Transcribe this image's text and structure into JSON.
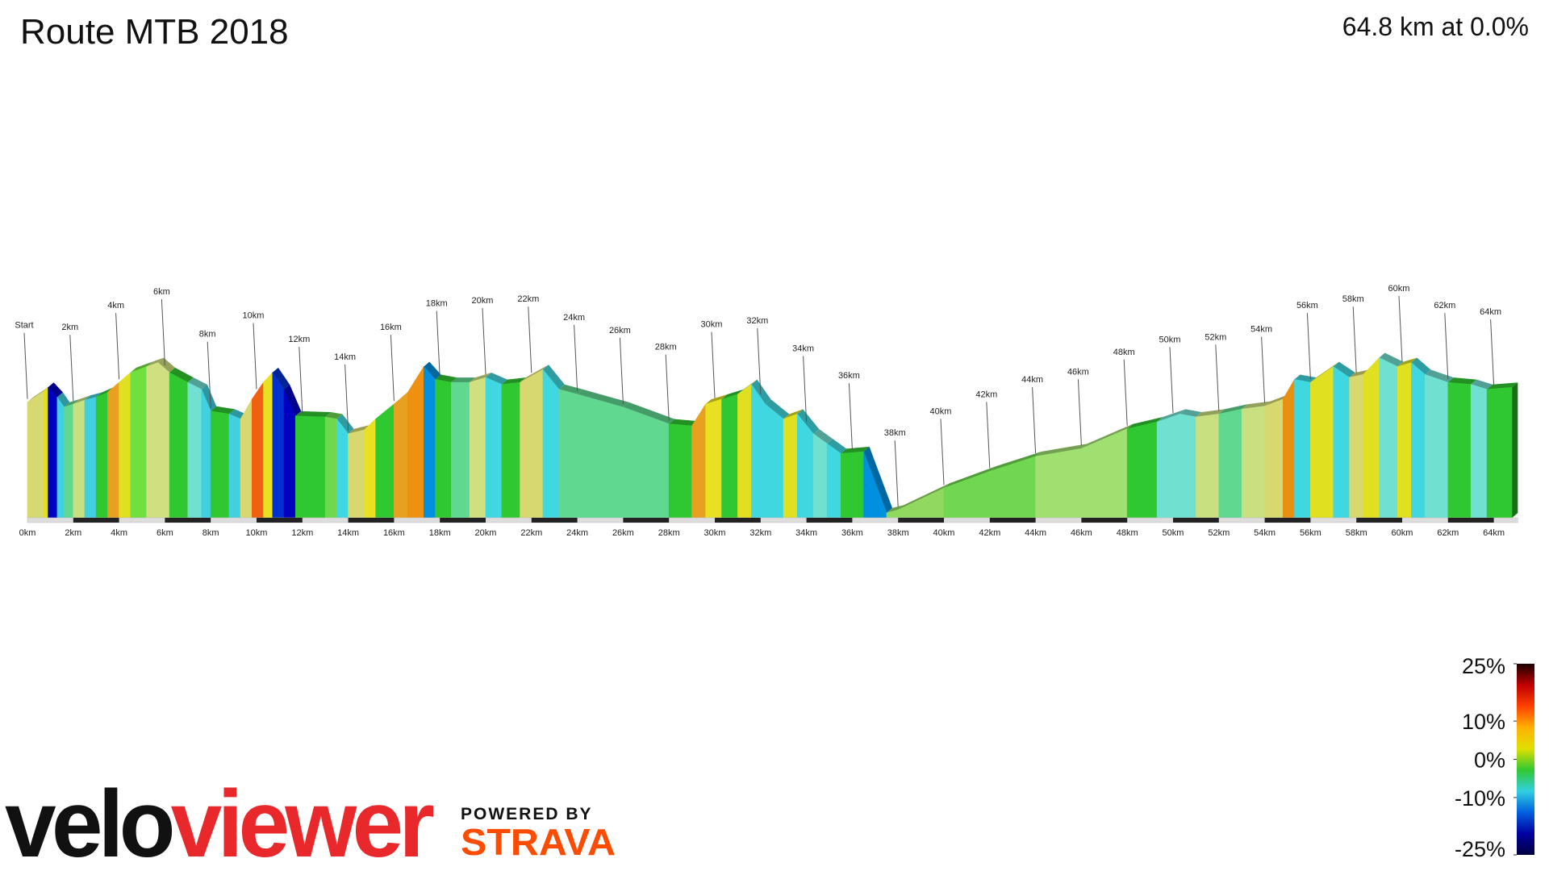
{
  "chart_data": {
    "type": "profile",
    "title": "Route MTB 2018",
    "subtitle": "64.8 km at 0.0%",
    "x": [
      0,
      0.7,
      0.9,
      1.3,
      1.6,
      2,
      2.5,
      3,
      3.5,
      4,
      4.5,
      5.2,
      5.7,
      6.2,
      7,
      7.6,
      8,
      8.8,
      9.3,
      9.8,
      10.3,
      10.7,
      11.2,
      11.7,
      13,
      13.5,
      14,
      14.7,
      15.2,
      16,
      16.6,
      17.3,
      17.8,
      18.5,
      19.3,
      20,
      20.7,
      21.5,
      22.5,
      23.2,
      24,
      26,
      28,
      29,
      29.6,
      30.3,
      31,
      31.6,
      32.2,
      33,
      33.6,
      34.3,
      34.9,
      35.5,
      36.5,
      37.5,
      38,
      40,
      42,
      44,
      46,
      48,
      49.3,
      50.3,
      51,
      52,
      53,
      54,
      54.8,
      55.3,
      56,
      57,
      57.7,
      58.3,
      59,
      59.8,
      60.4,
      61,
      62,
      63,
      63.7,
      64.8
    ],
    "values": [
      117,
      128,
      132,
      122,
      112,
      115,
      119,
      122,
      127,
      137,
      147,
      153,
      157,
      147,
      137,
      130,
      108,
      105,
      100,
      120,
      137,
      147,
      130,
      103,
      102,
      100,
      85,
      89,
      100,
      115,
      127,
      153,
      140,
      137,
      137,
      142,
      135,
      137,
      150,
      130,
      125,
      112,
      95,
      93,
      115,
      120,
      125,
      135,
      115,
      100,
      105,
      85,
      75,
      65,
      67,
      5,
      8,
      30,
      47,
      62,
      70,
      90,
      97,
      105,
      102,
      105,
      110,
      113,
      120,
      140,
      137,
      153,
      142,
      145,
      162,
      153,
      157,
      145,
      137,
      135,
      130,
      132
    ],
    "segment_colors": [
      "#d8d870",
      "#e0e020",
      "#0000c0",
      "#40d0e0",
      "#60d890",
      "#c8e080",
      "#40d0e0",
      "#30c830",
      "#e8a020",
      "#e0e020",
      "#70e040",
      "#d0e080",
      "#d0e080",
      "#30c830",
      "#70e0d0",
      "#40d0e0",
      "#30c830",
      "#40d0e0",
      "#d8d870",
      "#f06010",
      "#e8e020",
      "#0030d0",
      "#0000c0",
      "#30c830",
      "#70d850",
      "#40d8e0",
      "#d8d870",
      "#e8e020",
      "#30c830",
      "#e8a020",
      "#f09010",
      "#0090e0",
      "#30c830",
      "#60d890",
      "#d0e080",
      "#40d8e0",
      "#30c830",
      "#d8d870",
      "#40d8e0",
      "#60d890",
      "#60d890",
      "#60d890",
      "#30c830",
      "#e8a020",
      "#e8e020",
      "#30c830",
      "#e0e020",
      "#40d8e0",
      "#40d8e0",
      "#e0e020",
      "#40d8e0",
      "#70e0d0",
      "#40d8e0",
      "#30c830",
      "#0090e0",
      "#90d860",
      "#90d860",
      "#70d850",
      "#70d850",
      "#a0e070",
      "#a0e070",
      "#30c830",
      "#70e0d0",
      "#70e0d0",
      "#c8e080",
      "#60d890",
      "#c8e080",
      "#d8d870",
      "#e89010",
      "#40d8e0",
      "#e0e020",
      "#40d8e0",
      "#d8d870",
      "#e0e020",
      "#70e0d0",
      "#e0e020",
      "#40d8e0",
      "#70e0d0",
      "#30c830",
      "#70e0d0",
      "#30c830"
    ],
    "xlim": [
      0,
      64.8
    ],
    "ylim": [
      0,
      200
    ],
    "xticks": [
      {
        "value": 0,
        "label": "0km"
      },
      {
        "value": 2,
        "label": "2km"
      },
      {
        "value": 4,
        "label": "4km"
      },
      {
        "value": 6,
        "label": "6km"
      },
      {
        "value": 8,
        "label": "8km"
      },
      {
        "value": 10,
        "label": "10km"
      },
      {
        "value": 12,
        "label": "12km"
      },
      {
        "value": 14,
        "label": "14km"
      },
      {
        "value": 16,
        "label": "16km"
      },
      {
        "value": 18,
        "label": "18km"
      },
      {
        "value": 20,
        "label": "20km"
      },
      {
        "value": 22,
        "label": "22km"
      },
      {
        "value": 24,
        "label": "24km"
      },
      {
        "value": 26,
        "label": "26km"
      },
      {
        "value": 28,
        "label": "28km"
      },
      {
        "value": 30,
        "label": "30km"
      },
      {
        "value": 32,
        "label": "32km"
      },
      {
        "value": 34,
        "label": "34km"
      },
      {
        "value": 36,
        "label": "36km"
      },
      {
        "value": 38,
        "label": "38km"
      },
      {
        "value": 40,
        "label": "40km"
      },
      {
        "value": 42,
        "label": "42km"
      },
      {
        "value": 44,
        "label": "44km"
      },
      {
        "value": 46,
        "label": "46km"
      },
      {
        "value": 48,
        "label": "48km"
      },
      {
        "value": 50,
        "label": "50km"
      },
      {
        "value": 52,
        "label": "52km"
      },
      {
        "value": 54,
        "label": "54km"
      },
      {
        "value": 56,
        "label": "56km"
      },
      {
        "value": 58,
        "label": "58km"
      },
      {
        "value": 60,
        "label": "60km"
      },
      {
        "value": 62,
        "label": "62km"
      },
      {
        "value": 64,
        "label": "64km"
      }
    ],
    "marker_labels": [
      "Start",
      "2km",
      "4km",
      "6km",
      "8km",
      "10km",
      "12km",
      "14km",
      "16km",
      "18km",
      "20km",
      "22km",
      "24km",
      "26km",
      "28km",
      "30km",
      "32km",
      "34km",
      "36km",
      "38km",
      "40km",
      "42km",
      "44km",
      "46km",
      "48km",
      "50km",
      "52km",
      "54km",
      "56km",
      "58km",
      "60km",
      "62km",
      "64km"
    ],
    "colorbar": {
      "clim": [
        -25,
        25
      ],
      "ticks": [
        {
          "value": 25,
          "label": "25%"
        },
        {
          "value": 10,
          "label": "10%"
        },
        {
          "value": 0,
          "label": "0%"
        },
        {
          "value": -10,
          "label": "-10%"
        },
        {
          "value": -25,
          "label": "-25%"
        }
      ],
      "colors": [
        "#1a0000",
        "#c00000",
        "#ff4000",
        "#ffb000",
        "#e0e000",
        "#30c830",
        "#30d0e0",
        "#0060e0",
        "#0000a0",
        "#000040"
      ]
    }
  },
  "logo": {
    "velo": "velo",
    "viewer": "viewer",
    "powered": "POWERED BY",
    "strava": "STRAVA"
  }
}
